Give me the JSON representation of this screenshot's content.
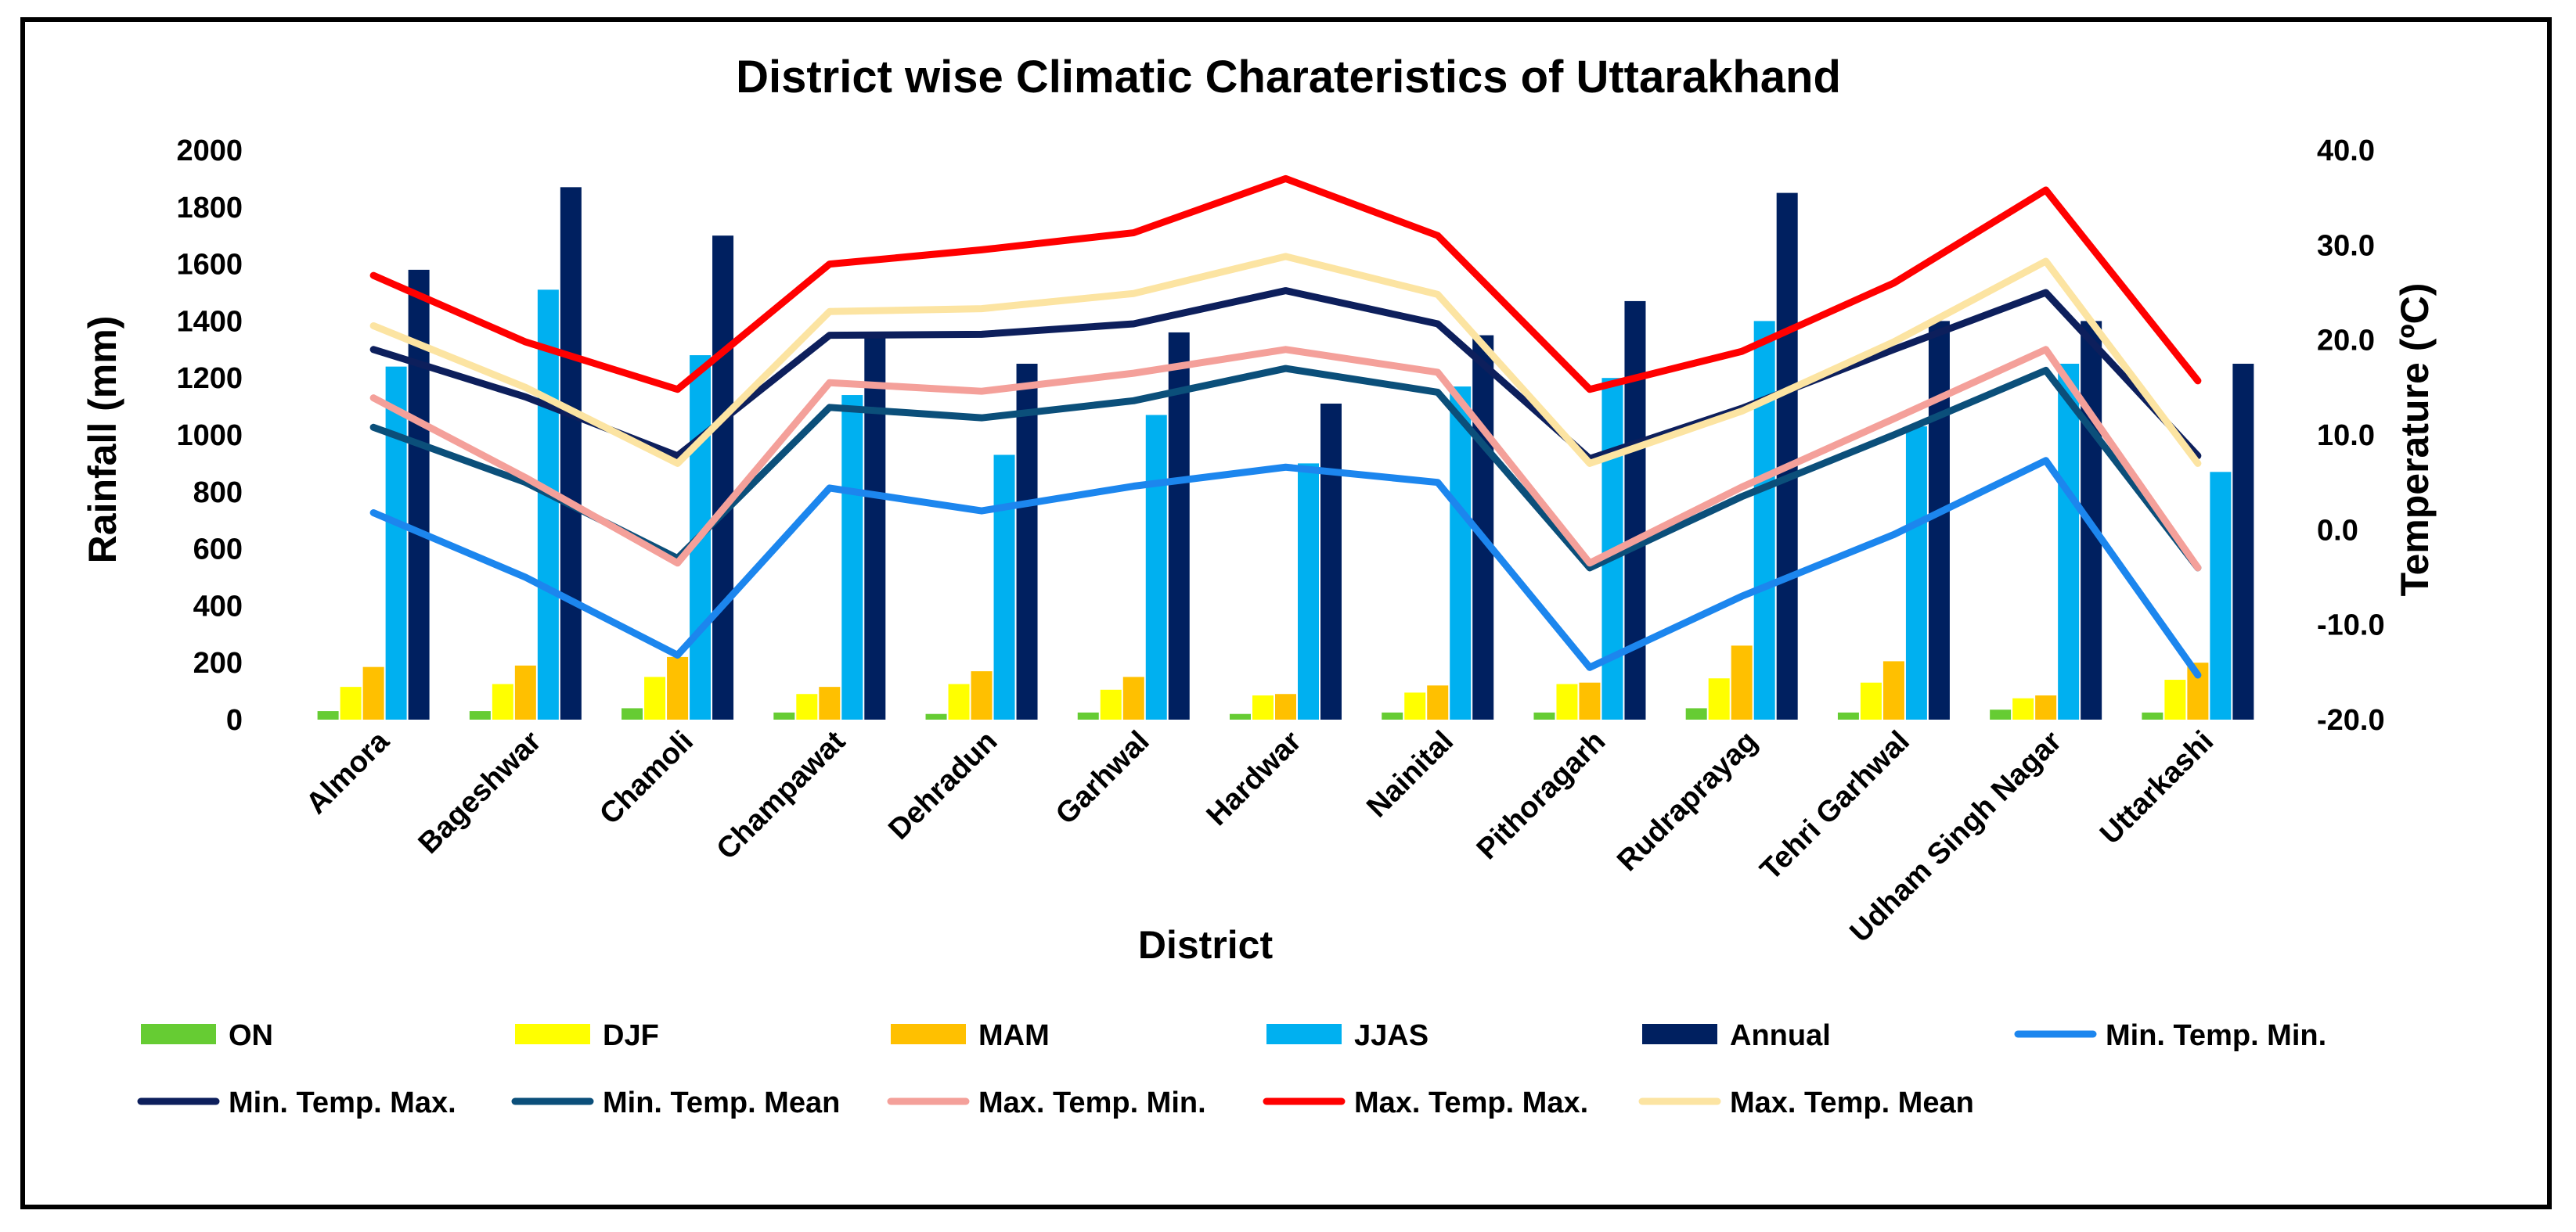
{
  "chart_data": {
    "type": "bar",
    "title": "District wise Climatic Charateristics of Uttarakhand",
    "xlabel": "District",
    "ylabel": "Rainfall (mm)",
    "y2label": "Temperature (ºC)",
    "ylim": [
      0,
      2000
    ],
    "y2lim": [
      -20,
      40
    ],
    "yticks": [
      "0",
      "200",
      "400",
      "600",
      "800",
      "1000",
      "1200",
      "1400",
      "1600",
      "1800",
      "2000"
    ],
    "y2ticks": [
      "-20.0",
      "-10.0",
      "0.0",
      "10.0",
      "20.0",
      "30.0",
      "40.0"
    ],
    "grid": false,
    "legend_position": "bottom",
    "categories": [
      "Almora",
      "Bageshwar",
      "Chamoli",
      "Champawat",
      "Dehradun",
      "Garhwal",
      "Hardwar",
      "Nainital",
      "Pithoragarh",
      "Rudraprayag",
      "Tehri Garhwal",
      "Udham Singh Nagar",
      "Uttarkashi"
    ],
    "bar_series": [
      {
        "name": "ON",
        "color": "#66CC33",
        "values": [
          30,
          30,
          40,
          25,
          20,
          25,
          20,
          25,
          25,
          40,
          25,
          35,
          25
        ]
      },
      {
        "name": "DJF",
        "color": "#FFFF00",
        "values": [
          115,
          125,
          150,
          90,
          125,
          105,
          85,
          95,
          125,
          145,
          130,
          75,
          140
        ]
      },
      {
        "name": "MAM",
        "color": "#FFC000",
        "values": [
          185,
          190,
          220,
          115,
          170,
          150,
          90,
          120,
          130,
          260,
          205,
          85,
          200
        ]
      },
      {
        "name": "JJAS",
        "color": "#00B0F0",
        "values": [
          1240,
          1510,
          1280,
          1140,
          930,
          1070,
          900,
          1170,
          1200,
          1400,
          1030,
          1250,
          870
        ]
      },
      {
        "name": "Annual",
        "color": "#002060",
        "values": [
          1580,
          1870,
          1700,
          1360,
          1250,
          1360,
          1110,
          1350,
          1470,
          1850,
          1400,
          1400,
          1250
        ]
      }
    ],
    "line_series": [
      {
        "name": "Min. Temp. Min.",
        "color": "#1C86EE",
        "values": [
          1.8,
          -5.0,
          -13.2,
          4.4,
          2.0,
          4.6,
          6.6,
          5.0,
          -14.5,
          -7.0,
          -0.5,
          7.3,
          -15.3
        ]
      },
      {
        "name": "Min. Temp. Max.",
        "color": "#0D1F5C",
        "values": [
          19.0,
          14.0,
          7.8,
          20.5,
          20.6,
          21.7,
          25.2,
          21.7,
          7.5,
          12.8,
          19.0,
          25.0,
          7.8
        ]
      },
      {
        "name": "Min. Temp. Mean",
        "color": "#0B4F7A",
        "values": [
          10.8,
          5.0,
          -3.0,
          12.9,
          11.8,
          13.6,
          17.0,
          14.5,
          -4.0,
          3.5,
          10.0,
          16.8,
          -4.0
        ]
      },
      {
        "name": "Max. Temp. Min.",
        "color": "#F4A09A",
        "values": [
          13.9,
          5.5,
          -3.5,
          15.5,
          14.6,
          16.5,
          19.0,
          16.6,
          -3.5,
          4.5,
          11.7,
          19.0,
          -4.0
        ]
      },
      {
        "name": "Max. Temp. Max.",
        "color": "#FF0000",
        "values": [
          26.8,
          19.8,
          14.8,
          28.0,
          29.5,
          31.3,
          37.0,
          31.0,
          14.8,
          18.8,
          26.0,
          35.8,
          15.7
        ]
      },
      {
        "name": "Max. Temp. Mean",
        "color": "#FCE4A2",
        "values": [
          21.5,
          15.0,
          7.0,
          23.0,
          23.3,
          24.9,
          28.8,
          24.8,
          7.0,
          12.5,
          19.8,
          28.3,
          7.0
        ]
      }
    ],
    "legend_order": [
      "ON",
      "DJF",
      "MAM",
      "JJAS",
      "Annual",
      "Min. Temp. Min.",
      "Min. Temp. Max.",
      "Min. Temp. Mean",
      "Max. Temp. Min.",
      "Max. Temp. Max.",
      "Max. Temp. Mean"
    ]
  }
}
